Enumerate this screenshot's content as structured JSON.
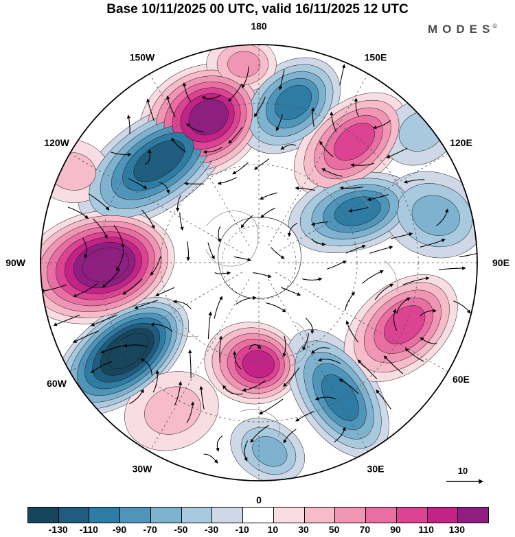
{
  "header": {
    "title": "Base 10/11/2025 00 UTC, valid 16/11/2025 12 UTC",
    "logo": "MODES",
    "logo_sup": "©"
  },
  "reference": {
    "label": "10"
  },
  "chart_data": {
    "type": "heatmap",
    "subtype": "filled-contour-anomaly-map-with-wind-vectors",
    "projection": "north-polar-stereographic",
    "title": "Base 10/11/2025 00 UTC, valid 16/11/2025 12 UTC",
    "base_time": "10/11/2025 00 UTC",
    "valid_time": "16/11/2025 12 UTC",
    "vector_reference": 10,
    "grid": "dashed graticule, 30-degree meridians, latitude circles",
    "longitude_labels": [
      {
        "text": "180",
        "angle": 0
      },
      {
        "text": "150E",
        "angle": 30
      },
      {
        "text": "120E",
        "angle": 60
      },
      {
        "text": "90E",
        "angle": 90
      },
      {
        "text": "60E",
        "angle": 120
      },
      {
        "text": "30E",
        "angle": 150
      },
      {
        "text": "0",
        "angle": 180
      },
      {
        "text": "30W",
        "angle": 210
      },
      {
        "text": "60W",
        "angle": 240
      },
      {
        "text": "90W",
        "angle": 270
      },
      {
        "text": "120W",
        "angle": 300
      },
      {
        "text": "150W",
        "angle": 330
      }
    ],
    "colorbar": {
      "boundaries": [
        -130,
        -110,
        -90,
        -70,
        -50,
        -30,
        -10,
        10,
        30,
        50,
        70,
        90,
        110,
        130
      ],
      "colors": [
        "#16455c",
        "#1f5c7d",
        "#2e7ba3",
        "#4f95ba",
        "#7eb2cf",
        "#a9c9de",
        "#cfd8e7",
        "#ffffff",
        "#f8dde2",
        "#f6bcca",
        "#f095b4",
        "#e96fa2",
        "#dc4392",
        "#c32286",
        "#8e1f80"
      ]
    },
    "anomaly_centers": [
      {
        "dx": -0.26,
        "dy": -0.65,
        "value": 130,
        "size": 0.3,
        "aspect": 0.82,
        "rot": -30
      },
      {
        "dx": 0.14,
        "dy": -0.72,
        "value": -90,
        "size": 0.26,
        "aspect": 0.72,
        "rot": -40
      },
      {
        "dx": -0.48,
        "dy": -0.45,
        "value": -110,
        "size": 0.4,
        "aspect": 0.52,
        "rot": -35
      },
      {
        "dx": 0.42,
        "dy": -0.54,
        "value": 90,
        "size": 0.3,
        "aspect": 0.62,
        "rot": -40
      },
      {
        "dx": 0.43,
        "dy": -0.23,
        "value": -90,
        "size": 0.3,
        "aspect": 0.58,
        "rot": -15
      },
      {
        "dx": 0.8,
        "dy": -0.22,
        "value": -50,
        "size": 0.24,
        "aspect": 0.8,
        "rot": 20
      },
      {
        "dx": -0.74,
        "dy": 0.02,
        "value": 150,
        "size": 0.36,
        "aspect": 0.7,
        "rot": -15
      },
      {
        "dx": -0.63,
        "dy": 0.43,
        "value": -150,
        "size": 0.36,
        "aspect": 0.55,
        "rot": -38
      },
      {
        "dx": -0.03,
        "dy": 0.46,
        "value": 110,
        "size": 0.22,
        "aspect": 0.85,
        "rot": 10
      },
      {
        "dx": 0.36,
        "dy": 0.6,
        "value": -90,
        "size": 0.33,
        "aspect": 0.55,
        "rot": 57
      },
      {
        "dx": 0.65,
        "dy": 0.3,
        "value": 90,
        "size": 0.3,
        "aspect": 0.65,
        "rot": -41
      },
      {
        "dx": -0.4,
        "dy": 0.68,
        "value": 30,
        "size": 0.22,
        "aspect": 0.8,
        "rot": -20
      },
      {
        "dx": -0.08,
        "dy": -0.91,
        "value": 50,
        "size": 0.16,
        "aspect": 0.8,
        "rot": 0
      },
      {
        "dx": 0.74,
        "dy": -0.6,
        "value": -30,
        "size": 0.18,
        "aspect": 0.8,
        "rot": -30
      },
      {
        "dx": 0.04,
        "dy": 0.86,
        "value": -50,
        "size": 0.18,
        "aspect": 0.75,
        "rot": 30
      },
      {
        "dx": -0.86,
        "dy": -0.42,
        "value": 30,
        "size": 0.18,
        "aspect": 0.8,
        "rot": 10
      }
    ]
  }
}
